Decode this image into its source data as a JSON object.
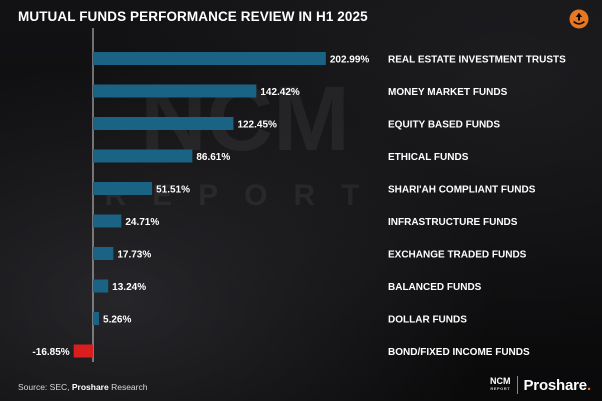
{
  "title": "MUTUAL FUNDS PERFORMANCE REVIEW IN H1 2025",
  "colors": {
    "background": "#0b0b0c",
    "bar_positive": "#1b6384",
    "bar_negative": "#d81e1e",
    "brand_orange": "#e87722",
    "text": "#ffffff"
  },
  "watermark": {
    "main": "NCM",
    "sub": "REPORT"
  },
  "source": {
    "prefix": "Source: SEC, ",
    "brand": "Proshare",
    "suffix": " Research"
  },
  "footer": {
    "ncm": "NCM",
    "ncm_sub": "REPORT",
    "proshare": "Proshare",
    "proshare_dot": "."
  },
  "icons": {
    "top_right": "proshare-badge-icon"
  },
  "chart_data": {
    "type": "bar",
    "orientation": "horizontal",
    "categories": [
      "REAL ESTATE INVESTMENT TRUSTS",
      "MONEY MARKET FUNDS",
      "EQUITY BASED FUNDS",
      "ETHICAL FUNDS",
      "SHARI'AH COMPLIANT FUNDS",
      "INFRASTRUCTURE FUNDS",
      "EXCHANGE TRADED FUNDS",
      "BALANCED FUNDS",
      "DOLLAR FUNDS",
      "BOND/FIXED INCOME FUNDS"
    ],
    "values": [
      202.99,
      142.42,
      122.45,
      86.61,
      51.51,
      24.71,
      17.73,
      13.24,
      5.26,
      -16.85
    ],
    "value_labels": [
      "202.99%",
      "142.42%",
      "122.45%",
      "86.61%",
      "51.51%",
      "24.71%",
      "17.73%",
      "13.24%",
      "5.26%",
      "-16.85%"
    ],
    "unit": "%",
    "xlim": [
      -16.85,
      202.99
    ],
    "grid": false,
    "legend": false
  }
}
